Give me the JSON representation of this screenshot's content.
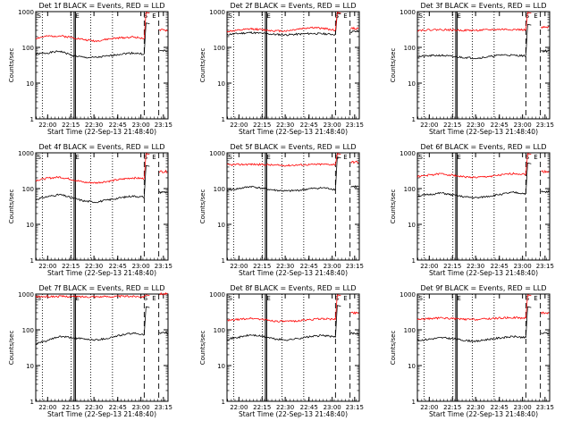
{
  "chart_data": [
    {
      "type": "line",
      "title": "Det 1f BLACK = Events, RED = LLD",
      "xlabel": "Start Time (22-Sep-13 21:48:40)",
      "ylabel": "Counts/sec",
      "x_ticks": [
        "22:00",
        "22:15",
        "22:30",
        "22:45",
        "23:00",
        "23:15"
      ],
      "y_ticks": [
        "1",
        "10",
        "100",
        "1000"
      ],
      "ylim": [
        1,
        1000
      ],
      "yscale": "log",
      "markers": [
        "S",
        "E",
        "S",
        "E"
      ],
      "series": [
        {
          "color": "#000000",
          "base": 60,
          "vals": [
            65,
            70,
            78,
            60,
            52,
            52,
            57,
            65,
            70,
            65
          ]
        },
        {
          "color": "#ff0000",
          "base": 180,
          "vals": [
            180,
            205,
            210,
            190,
            165,
            150,
            170,
            185,
            195,
            180
          ]
        }
      ]
    },
    {
      "type": "line",
      "title": "Det 2f BLACK = Events, RED = LLD",
      "xlabel": "Start Time (22-Sep-13 21:48:40)",
      "ylabel": "Counts/sec",
      "x_ticks": [
        "22:00",
        "22:15",
        "22:30",
        "22:45",
        "23:00",
        "23:15"
      ],
      "y_ticks": [
        "1",
        "10",
        "100",
        "1000"
      ],
      "ylim": [
        1,
        1000
      ],
      "yscale": "log",
      "markers": [
        "S",
        "E",
        "S",
        "E"
      ],
      "series": [
        {
          "color": "#000000",
          "base": 230,
          "vals": [
            230,
            245,
            260,
            245,
            230,
            225,
            235,
            245,
            240,
            230
          ]
        },
        {
          "color": "#ff0000",
          "base": 280,
          "vals": [
            280,
            300,
            330,
            310,
            290,
            290,
            330,
            360,
            340,
            300
          ]
        }
      ]
    },
    {
      "type": "line",
      "title": "Det 3f BLACK = Events, RED = LLD",
      "xlabel": "Start Time (22-Sep-13 21:48:40)",
      "ylabel": "Counts/sec",
      "x_ticks": [
        "22:00",
        "22:15",
        "22:30",
        "22:45",
        "23:00",
        "23:15"
      ],
      "y_ticks": [
        "1",
        "10",
        "100",
        "1000"
      ],
      "ylim": [
        1,
        1000
      ],
      "yscale": "log",
      "markers": [
        "S",
        "E",
        "S",
        "E"
      ],
      "series": [
        {
          "color": "#000000",
          "base": 55,
          "vals": [
            55,
            58,
            60,
            55,
            52,
            50,
            55,
            62,
            60,
            58
          ]
        },
        {
          "color": "#ff0000",
          "base": 300,
          "vals": [
            300,
            310,
            315,
            305,
            300,
            300,
            310,
            320,
            315,
            310
          ]
        }
      ]
    },
    {
      "type": "line",
      "title": "Det 4f BLACK = Events, RED = LLD",
      "xlabel": "Start Time (22-Sep-13 21:48:40)",
      "ylabel": "Counts/sec",
      "x_ticks": [
        "22:00",
        "22:15",
        "22:30",
        "22:45",
        "23:00",
        "23:15"
      ],
      "y_ticks": [
        "1",
        "10",
        "100",
        "1000"
      ],
      "ylim": [
        1,
        1000
      ],
      "yscale": "log",
      "markers": [
        "S",
        "E",
        "S",
        "E"
      ],
      "series": [
        {
          "color": "#000000",
          "base": 55,
          "vals": [
            50,
            60,
            68,
            55,
            45,
            42,
            48,
            55,
            62,
            58
          ]
        },
        {
          "color": "#ff0000",
          "base": 180,
          "vals": [
            170,
            195,
            210,
            180,
            150,
            145,
            160,
            180,
            200,
            190
          ]
        }
      ]
    },
    {
      "type": "line",
      "title": "Det 5f BLACK = Events, RED = LLD",
      "xlabel": "Start Time (22-Sep-13 21:48:40)",
      "ylabel": "Counts/sec",
      "x_ticks": [
        "22:00",
        "22:15",
        "22:30",
        "22:45",
        "23:00",
        "23:15"
      ],
      "y_ticks": [
        "1",
        "10",
        "100",
        "1000"
      ],
      "ylim": [
        1,
        1000
      ],
      "yscale": "log",
      "markers": [
        "S",
        "E",
        "S",
        "E"
      ],
      "series": [
        {
          "color": "#000000",
          "base": 95,
          "vals": [
            90,
            100,
            115,
            100,
            90,
            85,
            90,
            100,
            105,
            95
          ]
        },
        {
          "color": "#ff0000",
          "base": 460,
          "vals": [
            460,
            470,
            480,
            470,
            450,
            445,
            460,
            470,
            480,
            470
          ]
        }
      ]
    },
    {
      "type": "line",
      "title": "Det 6f BLACK = Events, RED = LLD",
      "xlabel": "Start Time (22-Sep-13 21:48:40)",
      "ylabel": "Counts/sec",
      "x_ticks": [
        "22:00",
        "22:15",
        "22:30",
        "22:45",
        "23:00",
        "23:15"
      ],
      "y_ticks": [
        "1",
        "10",
        "100",
        "1000"
      ],
      "ylim": [
        1,
        1000
      ],
      "yscale": "log",
      "markers": [
        "S",
        "E",
        "S",
        "E"
      ],
      "series": [
        {
          "color": "#000000",
          "base": 65,
          "vals": [
            62,
            68,
            75,
            65,
            58,
            55,
            62,
            70,
            78,
            72
          ]
        },
        {
          "color": "#ff0000",
          "base": 230,
          "vals": [
            215,
            240,
            260,
            235,
            210,
            205,
            220,
            240,
            265,
            250
          ]
        }
      ]
    },
    {
      "type": "line",
      "title": "Det 7f BLACK = Events, RED = LLD",
      "xlabel": "Start Time (22-Sep-13 21:48:40)",
      "ylabel": "Counts/sec",
      "x_ticks": [
        "22:00",
        "22:15",
        "22:30",
        "22:45",
        "23:00",
        "23:15"
      ],
      "y_ticks": [
        "1",
        "10",
        "100",
        "1000"
      ],
      "ylim": [
        1,
        1000
      ],
      "yscale": "log",
      "markers": [
        "S",
        "E",
        "S",
        "E"
      ],
      "series": [
        {
          "color": "#000000",
          "base": 55,
          "vals": [
            40,
            50,
            65,
            60,
            55,
            52,
            58,
            70,
            80,
            75
          ]
        },
        {
          "color": "#ff0000",
          "base": 850,
          "vals": [
            840,
            850,
            860,
            850,
            840,
            845,
            850,
            860,
            865,
            855
          ]
        }
      ]
    },
    {
      "type": "line",
      "title": "Det 8f BLACK = Events, RED = LLD",
      "xlabel": "Start Time (22-Sep-13 21:48:40)",
      "ylabel": "Counts/sec",
      "x_ticks": [
        "22:00",
        "22:15",
        "22:30",
        "22:45",
        "23:00",
        "23:15"
      ],
      "y_ticks": [
        "1",
        "10",
        "100",
        "1000"
      ],
      "ylim": [
        1,
        1000
      ],
      "yscale": "log",
      "markers": [
        "S",
        "E",
        "S",
        "E"
      ],
      "series": [
        {
          "color": "#000000",
          "base": 60,
          "vals": [
            55,
            62,
            72,
            65,
            55,
            52,
            58,
            65,
            70,
            62
          ]
        },
        {
          "color": "#ff0000",
          "base": 190,
          "vals": [
            180,
            195,
            210,
            195,
            175,
            170,
            180,
            195,
            205,
            195
          ]
        }
      ]
    },
    {
      "type": "line",
      "title": "Det 9f BLACK = Events, RED = LLD",
      "xlabel": "Start Time (22-Sep-13 21:48:40)",
      "ylabel": "Counts/sec",
      "x_ticks": [
        "22:00",
        "22:15",
        "22:30",
        "22:45",
        "23:00",
        "23:15"
      ],
      "y_ticks": [
        "1",
        "10",
        "100",
        "1000"
      ],
      "ylim": [
        1,
        1000
      ],
      "yscale": "log",
      "markers": [
        "S",
        "E",
        "S",
        "E"
      ],
      "series": [
        {
          "color": "#000000",
          "base": 55,
          "vals": [
            50,
            55,
            60,
            56,
            50,
            48,
            55,
            60,
            65,
            60
          ]
        },
        {
          "color": "#ff0000",
          "base": 200,
          "vals": [
            195,
            205,
            215,
            205,
            195,
            195,
            205,
            215,
            220,
            210
          ]
        }
      ]
    }
  ]
}
